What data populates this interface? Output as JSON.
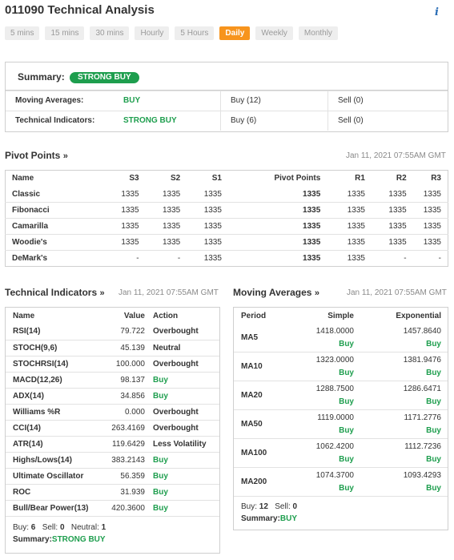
{
  "header": {
    "title": "011090 Technical Analysis",
    "info_icon": "info-icon"
  },
  "tabs": [
    {
      "label": "5 mins",
      "active": false
    },
    {
      "label": "15 mins",
      "active": false
    },
    {
      "label": "30 mins",
      "active": false
    },
    {
      "label": "Hourly",
      "active": false
    },
    {
      "label": "5 Hours",
      "active": false
    },
    {
      "label": "Daily",
      "active": true
    },
    {
      "label": "Weekly",
      "active": false
    },
    {
      "label": "Monthly",
      "active": false
    }
  ],
  "summary": {
    "label": "Summary:",
    "badge": "STRONG BUY",
    "rows": [
      {
        "name": "Moving Averages:",
        "signal": "BUY",
        "buy": "Buy (12)",
        "sell": "Sell (0)"
      },
      {
        "name": "Technical Indicators:",
        "signal": "STRONG BUY",
        "buy": "Buy (6)",
        "sell": "Sell (0)"
      }
    ]
  },
  "pivot": {
    "title": "Pivot Points",
    "arrow": "»",
    "date": "Jan 11, 2021 07:55AM GMT",
    "columns": [
      "Name",
      "S3",
      "S2",
      "S1",
      "Pivot Points",
      "R1",
      "R2",
      "R3"
    ],
    "rows": [
      [
        "Classic",
        "1335",
        "1335",
        "1335",
        "1335",
        "1335",
        "1335",
        "1335"
      ],
      [
        "Fibonacci",
        "1335",
        "1335",
        "1335",
        "1335",
        "1335",
        "1335",
        "1335"
      ],
      [
        "Camarilla",
        "1335",
        "1335",
        "1335",
        "1335",
        "1335",
        "1335",
        "1335"
      ],
      [
        "Woodie's",
        "1335",
        "1335",
        "1335",
        "1335",
        "1335",
        "1335",
        "1335"
      ],
      [
        "DeMark's",
        "-",
        "-",
        "1335",
        "1335",
        "1335",
        "-",
        "-"
      ]
    ]
  },
  "indicators": {
    "title": "Technical Indicators",
    "arrow": "»",
    "date": "Jan 11, 2021 07:55AM GMT",
    "columns": [
      "Name",
      "Value",
      "Action"
    ],
    "rows": [
      {
        "name": "RSI(14)",
        "value": "79.722",
        "action": "Overbought",
        "buy": false
      },
      {
        "name": "STOCH(9,6)",
        "value": "45.139",
        "action": "Neutral",
        "buy": false
      },
      {
        "name": "STOCHRSI(14)",
        "value": "100.000",
        "action": "Overbought",
        "buy": false
      },
      {
        "name": "MACD(12,26)",
        "value": "98.137",
        "action": "Buy",
        "buy": true
      },
      {
        "name": "ADX(14)",
        "value": "34.856",
        "action": "Buy",
        "buy": true
      },
      {
        "name": "Williams %R",
        "value": "0.000",
        "action": "Overbought",
        "buy": false
      },
      {
        "name": "CCI(14)",
        "value": "263.4169",
        "action": "Overbought",
        "buy": false
      },
      {
        "name": "ATR(14)",
        "value": "119.6429",
        "action": "Less Volatility",
        "buy": false
      },
      {
        "name": "Highs/Lows(14)",
        "value": "383.2143",
        "action": "Buy",
        "buy": true
      },
      {
        "name": "Ultimate Oscillator",
        "value": "56.359",
        "action": "Buy",
        "buy": true
      },
      {
        "name": "ROC",
        "value": "31.939",
        "action": "Buy",
        "buy": true
      },
      {
        "name": "Bull/Bear Power(13)",
        "value": "420.3600",
        "action": "Buy",
        "buy": true
      }
    ],
    "footer": {
      "buy_label": "Buy:",
      "buy": "6",
      "sell_label": "Sell:",
      "sell": "0",
      "neutral_label": "Neutral:",
      "neutral": "1",
      "summary_label": "Summary:",
      "summary": "STRONG BUY"
    }
  },
  "moving_averages": {
    "title": "Moving Averages",
    "arrow": "»",
    "date": "Jan 11, 2021 07:55AM GMT",
    "columns": [
      "Period",
      "Simple",
      "Exponential"
    ],
    "rows": [
      {
        "period": "MA5",
        "simple": "1418.0000",
        "simple_sig": "Buy",
        "exp": "1457.8640",
        "exp_sig": "Buy"
      },
      {
        "period": "MA10",
        "simple": "1323.0000",
        "simple_sig": "Buy",
        "exp": "1381.9476",
        "exp_sig": "Buy"
      },
      {
        "period": "MA20",
        "simple": "1288.7500",
        "simple_sig": "Buy",
        "exp": "1286.6471",
        "exp_sig": "Buy"
      },
      {
        "period": "MA50",
        "simple": "1119.0000",
        "simple_sig": "Buy",
        "exp": "1171.2776",
        "exp_sig": "Buy"
      },
      {
        "period": "MA100",
        "simple": "1062.4200",
        "simple_sig": "Buy",
        "exp": "1112.7236",
        "exp_sig": "Buy"
      },
      {
        "period": "MA200",
        "simple": "1074.3700",
        "simple_sig": "Buy",
        "exp": "1093.4293",
        "exp_sig": "Buy"
      }
    ],
    "footer": {
      "buy_label": "Buy:",
      "buy": "12",
      "sell_label": "Sell:",
      "sell": "0",
      "summary_label": "Summary:",
      "summary": "BUY"
    }
  },
  "colors": {
    "accent": "#f7941d",
    "buy": "#1e9e4e",
    "border": "#cfcfcf",
    "link": "#2a6db5"
  }
}
